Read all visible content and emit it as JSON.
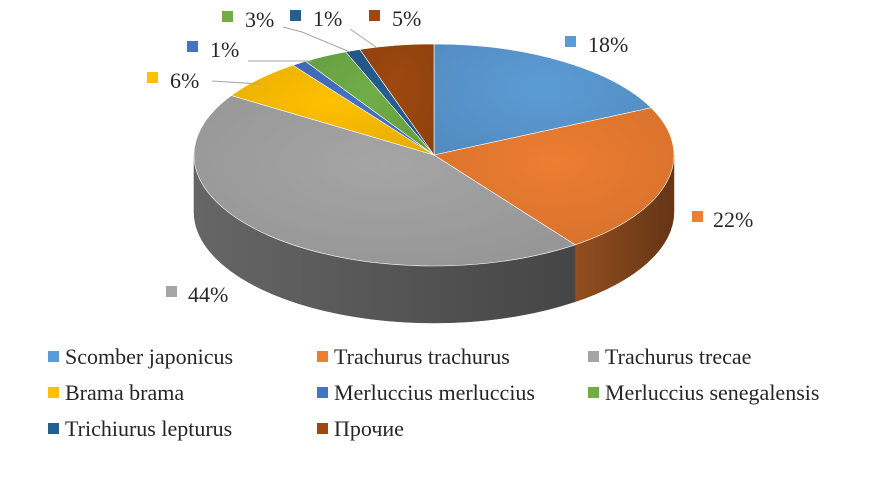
{
  "chart_data": {
    "type": "pie",
    "style": "3d",
    "title": "",
    "unit": "%",
    "legend_position": "bottom",
    "slices": [
      {
        "label": "Scomber japonicus",
        "value": 18,
        "color": "#5B9BD5"
      },
      {
        "label": "Trachurus trachurus",
        "value": 22,
        "color": "#ED7D31"
      },
      {
        "label": "Trachurus trecae",
        "value": 44,
        "color": "#A5A5A5"
      },
      {
        "label": "Brama brama",
        "value": 6,
        "color": "#FFC000"
      },
      {
        "label": "Merluccius merluccius",
        "value": 1,
        "color": "#4472C4"
      },
      {
        "label": "Merluccius senegalensis",
        "value": 3,
        "color": "#70AD47"
      },
      {
        "label": "Trichiurus lepturus",
        "value": 1,
        "color": "#255E91"
      },
      {
        "label": "Прочие",
        "value": 5,
        "color": "#9E480E"
      }
    ]
  }
}
